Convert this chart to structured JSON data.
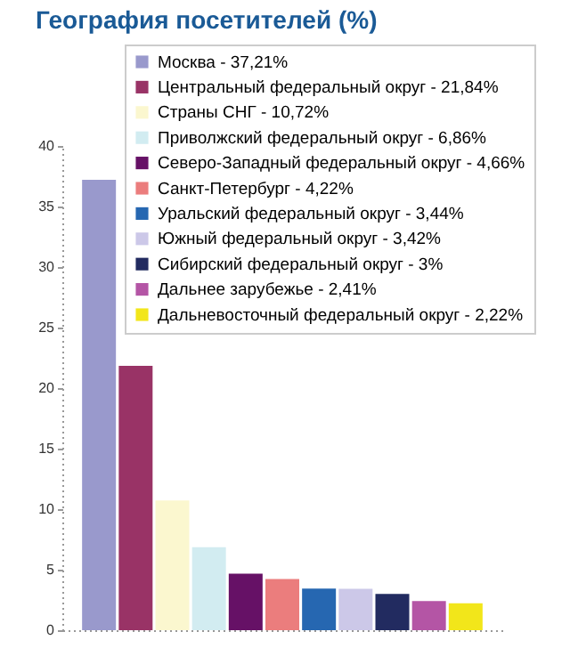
{
  "chart_data": {
    "type": "bar",
    "title": "География посетителей (%)",
    "stacked": true,
    "categories": [
      null,
      null,
      null,
      null,
      null,
      null,
      null,
      null,
      null,
      null,
      null
    ],
    "series": [
      {
        "name": "Москва - 37,21%",
        "color": "#9999cc",
        "values": [
          37.21,
          null,
          null,
          null,
          null,
          null,
          null,
          null,
          null,
          null,
          null
        ]
      },
      {
        "name": "Центральный федеральный округ - 21,84%",
        "color": "#993366",
        "values": [
          null,
          21.84,
          null,
          null,
          null,
          null,
          null,
          null,
          null,
          null,
          null
        ]
      },
      {
        "name": "Страны СНГ - 10,72%",
        "color": "#fbf7cf",
        "values": [
          null,
          null,
          10.72,
          null,
          null,
          null,
          null,
          null,
          null,
          null,
          null
        ]
      },
      {
        "name": "Приволжский федеральный округ - 6,86%",
        "color": "#d2ecf1",
        "values": [
          null,
          null,
          null,
          6.86,
          null,
          null,
          null,
          null,
          null,
          null,
          null
        ]
      },
      {
        "name": "Северо-Западный федеральный округ - 4,66%",
        "color": "#661166",
        "values": [
          null,
          null,
          null,
          null,
          4.66,
          null,
          null,
          null,
          null,
          null,
          null
        ]
      },
      {
        "name": "Санкт-Петербург - 4,22%",
        "color": "#eb7d7d",
        "values": [
          null,
          null,
          null,
          null,
          null,
          4.22,
          null,
          null,
          null,
          null,
          null
        ]
      },
      {
        "name": "Уральский федеральный округ - 3,44%",
        "color": "#2667b1",
        "values": [
          null,
          null,
          null,
          null,
          null,
          null,
          3.44,
          null,
          null,
          null,
          null
        ]
      },
      {
        "name": "Южный федеральный округ - 3,42%",
        "color": "#ccc8e8",
        "values": [
          null,
          null,
          null,
          null,
          null,
          null,
          null,
          3.42,
          null,
          null,
          null
        ]
      },
      {
        "name": "Сибирский федеральный округ - 3%",
        "color": "#222b60",
        "values": [
          null,
          null,
          null,
          null,
          null,
          null,
          null,
          null,
          3,
          null,
          null
        ]
      },
      {
        "name": "Дальнее зарубежье - 2,41%",
        "color": "#b455a5",
        "values": [
          null,
          null,
          null,
          null,
          null,
          null,
          null,
          null,
          null,
          2.41,
          null
        ]
      },
      {
        "name": "Дальневосточный федеральный округ - 2,22%",
        "color": "#f2e61a",
        "values": [
          null,
          null,
          null,
          null,
          null,
          null,
          null,
          null,
          null,
          null,
          2.22
        ]
      }
    ],
    "ylim": [
      0,
      40
    ],
    "yticks": [
      0,
      5,
      10,
      15,
      20,
      25,
      30,
      35,
      40
    ],
    "tick_labels": "y",
    "legend": "top right",
    "grid": false
  }
}
